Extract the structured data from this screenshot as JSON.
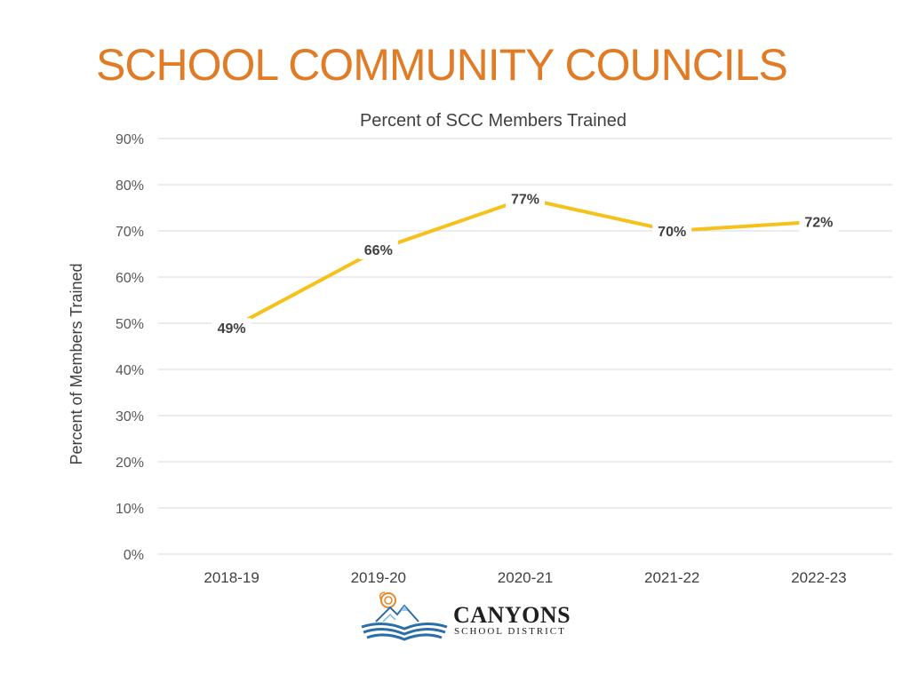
{
  "slide": {
    "title": "SCHOOL COMMUNITY COUNCILS"
  },
  "logo": {
    "name": "CANYONS",
    "subtitle": "SCHOOL DISTRICT",
    "icon": "book-mountains-sun-icon"
  },
  "colors": {
    "title": "#e07b26",
    "line": "#f5c11b",
    "grid": "#d9d9d9",
    "text": "#404040",
    "logo_blue": "#2a6fa8",
    "logo_orange": "#e8892e"
  },
  "chart_data": {
    "type": "line",
    "title": "Percent of SCC Members Trained",
    "xlabel": "",
    "ylabel": "Percent of Members Trained",
    "categories": [
      "2018-19",
      "2019-20",
      "2020-21",
      "2021-22",
      "2022-23"
    ],
    "series": [
      {
        "values": [
          49,
          66,
          77,
          70,
          72
        ]
      }
    ],
    "data_labels": [
      "49%",
      "66%",
      "77%",
      "70%",
      "72%"
    ],
    "ylim": [
      0,
      90
    ],
    "y_ticks": [
      "0%",
      "10%",
      "20%",
      "30%",
      "40%",
      "50%",
      "60%",
      "70%",
      "80%",
      "90%"
    ],
    "grid": true,
    "legend": "none"
  }
}
